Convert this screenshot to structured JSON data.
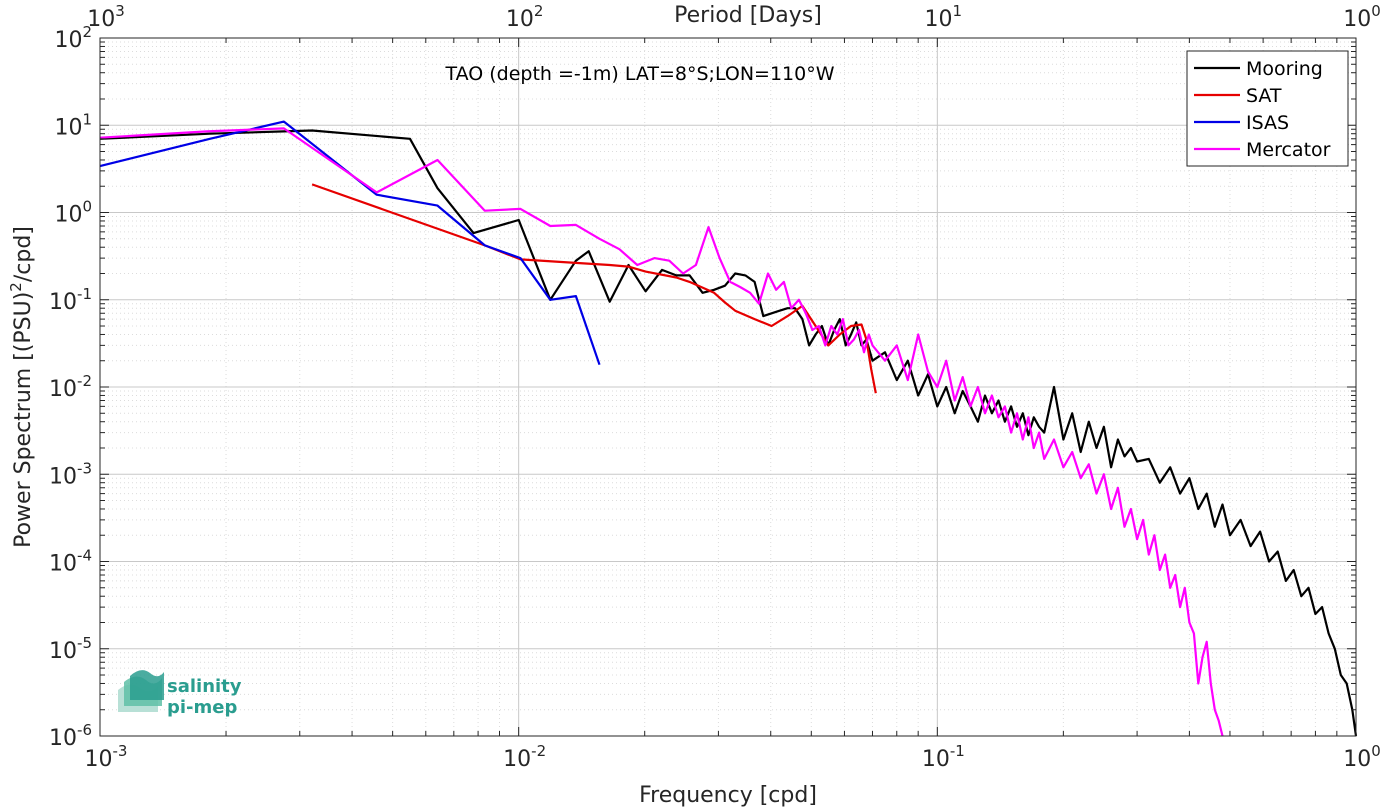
{
  "chart_data": {
    "type": "line",
    "title": "TAO (depth =-1m) LAT=8°S;LON=110°W",
    "xlabel": "Frequency [cpd]",
    "ylabel": "Power Spectrum [(PSU)",
    "ylabel_sup": "2",
    "ylabel_tail": "/cpd]",
    "top_xlabel": "Period [Days]",
    "x_scale": "log",
    "y_scale": "log",
    "xlim": [
      0.001,
      1
    ],
    "ylim": [
      1e-06,
      100
    ],
    "grid": true,
    "legend_position": "top-right",
    "x_ticks": [
      {
        "value": 0.001,
        "base": "10",
        "exp": "-3"
      },
      {
        "value": 0.01,
        "base": "10",
        "exp": "-2"
      },
      {
        "value": 0.1,
        "base": "10",
        "exp": "-1"
      },
      {
        "value": 1,
        "base": "10",
        "exp": "0"
      }
    ],
    "y_ticks": [
      {
        "value": 1e-06,
        "base": "10",
        "exp": "-6"
      },
      {
        "value": 1e-05,
        "base": "10",
        "exp": "-5"
      },
      {
        "value": 0.0001,
        "base": "10",
        "exp": "-4"
      },
      {
        "value": 0.001,
        "base": "10",
        "exp": "-3"
      },
      {
        "value": 0.01,
        "base": "10",
        "exp": "-2"
      },
      {
        "value": 0.1,
        "base": "10",
        "exp": "-1"
      },
      {
        "value": 1,
        "base": "10",
        "exp": "0"
      },
      {
        "value": 10,
        "base": "10",
        "exp": "1"
      },
      {
        "value": 100,
        "base": "10",
        "exp": "2"
      }
    ],
    "top_ticks": [
      {
        "value": 1000,
        "base": "10",
        "exp": "3"
      },
      {
        "value": 100,
        "base": "10",
        "exp": "2"
      },
      {
        "value": 10,
        "base": "10",
        "exp": "1"
      },
      {
        "value": 1,
        "base": "10",
        "exp": "0"
      }
    ],
    "series": [
      {
        "name": "Mooring",
        "color": "#000000",
        "x": [
          0.001,
          0.00183,
          0.00275,
          0.00321,
          0.0055,
          0.0064,
          0.0078,
          0.01,
          0.0119,
          0.0137,
          0.0147,
          0.0165,
          0.0183,
          0.0201,
          0.022,
          0.0238,
          0.0256,
          0.0275,
          0.0293,
          0.0311,
          0.0329,
          0.0348,
          0.0366,
          0.0384,
          0.0402,
          0.042,
          0.0439,
          0.0457,
          0.0476,
          0.0494,
          0.0512,
          0.053,
          0.0549,
          0.0567,
          0.0585,
          0.0604,
          0.0622,
          0.064,
          0.0659,
          0.0677,
          0.07,
          0.075,
          0.08,
          0.085,
          0.09,
          0.095,
          0.1,
          0.105,
          0.11,
          0.115,
          0.12,
          0.125,
          0.13,
          0.135,
          0.14,
          0.145,
          0.15,
          0.155,
          0.16,
          0.165,
          0.17,
          0.175,
          0.18,
          0.19,
          0.2,
          0.21,
          0.22,
          0.23,
          0.24,
          0.25,
          0.26,
          0.27,
          0.28,
          0.29,
          0.3,
          0.32,
          0.34,
          0.36,
          0.38,
          0.4,
          0.42,
          0.44,
          0.46,
          0.48,
          0.5,
          0.53,
          0.56,
          0.59,
          0.62,
          0.65,
          0.68,
          0.71,
          0.74,
          0.77,
          0.8,
          0.83,
          0.86,
          0.89,
          0.92,
          0.95,
          0.98,
          1.0
        ],
        "y": [
          7.0,
          8.0,
          8.5,
          8.7,
          7.0,
          1.9,
          0.58,
          0.82,
          0.1,
          0.28,
          0.36,
          0.095,
          0.25,
          0.125,
          0.22,
          0.19,
          0.19,
          0.12,
          0.13,
          0.145,
          0.2,
          0.19,
          0.16,
          0.065,
          0.07,
          0.075,
          0.08,
          0.08,
          0.06,
          0.03,
          0.04,
          0.05,
          0.03,
          0.045,
          0.06,
          0.03,
          0.04,
          0.055,
          0.03,
          0.035,
          0.02,
          0.025,
          0.012,
          0.02,
          0.008,
          0.014,
          0.006,
          0.01,
          0.005,
          0.009,
          0.006,
          0.004,
          0.008,
          0.005,
          0.007,
          0.004,
          0.006,
          0.0035,
          0.005,
          0.0028,
          0.0045,
          0.0035,
          0.003,
          0.01,
          0.0025,
          0.005,
          0.0018,
          0.004,
          0.002,
          0.0035,
          0.0012,
          0.0025,
          0.0016,
          0.002,
          0.0014,
          0.0015,
          0.0008,
          0.0012,
          0.0006,
          0.0009,
          0.0004,
          0.0006,
          0.00025,
          0.00045,
          0.0002,
          0.0003,
          0.00015,
          0.00022,
          0.0001,
          0.00013,
          6e-05,
          8e-05,
          4e-05,
          5e-05,
          2.5e-05,
          3e-05,
          1.5e-05,
          1e-05,
          5e-06,
          4e-06,
          2e-06,
          1e-06
        ]
      },
      {
        "name": "SAT",
        "color": "#e60000",
        "x": [
          0.00321,
          0.0083,
          0.0101,
          0.0128,
          0.0165,
          0.0183,
          0.0201,
          0.0238,
          0.0256,
          0.0293,
          0.0311,
          0.0329,
          0.0366,
          0.0402,
          0.0439,
          0.0476,
          0.0512,
          0.0549,
          0.0585,
          0.0622,
          0.0659,
          0.0677,
          0.0695,
          0.0713
        ],
        "y": [
          2.1,
          0.42,
          0.29,
          0.27,
          0.25,
          0.24,
          0.21,
          0.18,
          0.16,
          0.12,
          0.093,
          0.075,
          0.06,
          0.05,
          0.065,
          0.085,
          0.05,
          0.03,
          0.04,
          0.05,
          0.052,
          0.035,
          0.016,
          0.0085
        ]
      },
      {
        "name": "ISAS",
        "color": "#0000e6",
        "x": [
          0.001,
          0.00183,
          0.00275,
          0.00458,
          0.0064,
          0.0083,
          0.0101,
          0.0119,
          0.0137,
          0.0156
        ],
        "y": [
          3.4,
          7.0,
          11.0,
          1.6,
          1.2,
          0.42,
          0.3,
          0.1,
          0.11,
          0.018
        ]
      },
      {
        "name": "Mercator",
        "color": "#ff00ff",
        "x": [
          0.001,
          0.0018,
          0.00275,
          0.00458,
          0.0064,
          0.0083,
          0.0101,
          0.0119,
          0.0137,
          0.0156,
          0.0174,
          0.0192,
          0.0211,
          0.0229,
          0.0247,
          0.0265,
          0.0284,
          0.0302,
          0.032,
          0.0338,
          0.0357,
          0.0375,
          0.0394,
          0.0412,
          0.043,
          0.0448,
          0.0467,
          0.0485,
          0.0503,
          0.0521,
          0.054,
          0.0558,
          0.0577,
          0.0595,
          0.0613,
          0.0632,
          0.065,
          0.0668,
          0.0686,
          0.07,
          0.075,
          0.08,
          0.085,
          0.09,
          0.095,
          0.1,
          0.105,
          0.11,
          0.115,
          0.12,
          0.125,
          0.13,
          0.135,
          0.14,
          0.145,
          0.15,
          0.155,
          0.16,
          0.165,
          0.17,
          0.175,
          0.18,
          0.19,
          0.2,
          0.21,
          0.22,
          0.23,
          0.24,
          0.25,
          0.26,
          0.27,
          0.28,
          0.29,
          0.3,
          0.31,
          0.32,
          0.33,
          0.34,
          0.35,
          0.36,
          0.37,
          0.38,
          0.39,
          0.4,
          0.41,
          0.42,
          0.43,
          0.44,
          0.45,
          0.46,
          0.47,
          0.48
        ],
        "y": [
          7.2,
          8.5,
          9.2,
          1.7,
          4.0,
          1.05,
          1.1,
          0.7,
          0.72,
          0.5,
          0.38,
          0.25,
          0.3,
          0.28,
          0.2,
          0.25,
          0.68,
          0.3,
          0.16,
          0.14,
          0.12,
          0.09,
          0.2,
          0.13,
          0.16,
          0.08,
          0.1,
          0.07,
          0.045,
          0.05,
          0.03,
          0.05,
          0.04,
          0.06,
          0.03,
          0.035,
          0.045,
          0.025,
          0.04,
          0.03,
          0.02,
          0.03,
          0.012,
          0.04,
          0.015,
          0.01,
          0.02,
          0.007,
          0.013,
          0.006,
          0.01,
          0.005,
          0.008,
          0.0045,
          0.006,
          0.003,
          0.005,
          0.0025,
          0.0045,
          0.002,
          0.003,
          0.0015,
          0.0025,
          0.0012,
          0.0018,
          0.0009,
          0.0013,
          0.0006,
          0.001,
          0.0004,
          0.0007,
          0.00025,
          0.0004,
          0.00018,
          0.0003,
          0.00012,
          0.0002,
          8e-05,
          0.00012,
          5e-05,
          7e-05,
          3e-05,
          5e-05,
          2e-05,
          1.5e-05,
          4e-06,
          8e-06,
          1.2e-05,
          4e-06,
          2e-06,
          1.5e-06,
          1e-06
        ]
      }
    ]
  },
  "logo": {
    "line1": "salinity",
    "line2": "pi-mep"
  }
}
